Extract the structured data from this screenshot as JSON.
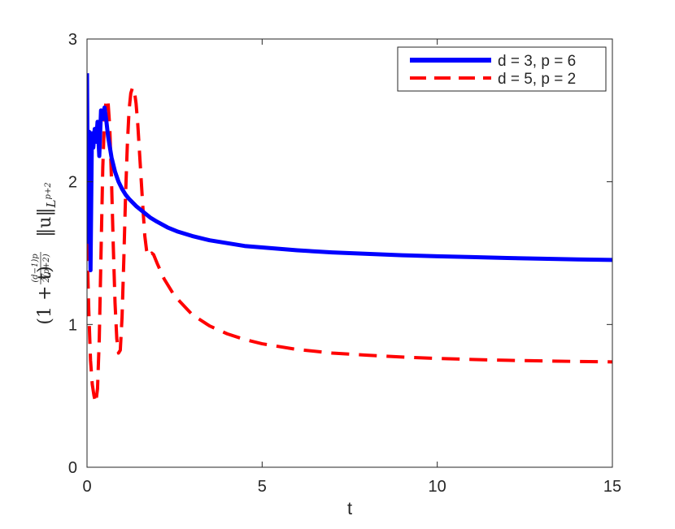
{
  "chart_data": {
    "type": "line",
    "title": "",
    "xlabel": "t",
    "ylabel": {
      "base": "(1 + t)",
      "exp_numerator": "(d−1)p",
      "exp_denominator": "2(p+2)",
      "norm": "‖u‖",
      "norm_subscript": "L",
      "norm_subscript_exp": "p+2"
    },
    "xlim": [
      0,
      15
    ],
    "ylim": [
      0,
      3
    ],
    "xticks": [
      0,
      5,
      10,
      15
    ],
    "yticks": [
      0,
      1,
      2,
      3
    ],
    "grid": false,
    "legend_position": "top-right",
    "series": [
      {
        "name": "d = 3, p = 6",
        "color": "#0000ff",
        "dash": "solid",
        "x": [
          0,
          0.03,
          0.06,
          0.1,
          0.14,
          0.18,
          0.22,
          0.26,
          0.3,
          0.35,
          0.4,
          0.45,
          0.5,
          0.55,
          0.6,
          0.7,
          0.8,
          0.9,
          1.0,
          1.1,
          1.2,
          1.4,
          1.6,
          1.8,
          2.0,
          2.3,
          2.6,
          3.0,
          3.5,
          4.0,
          4.5,
          5.0,
          6.0,
          7.0,
          8.0,
          9.0,
          10.0,
          11.0,
          12.0,
          13.0,
          14.0,
          15.0
        ],
        "y": [
          2.76,
          1.58,
          2.35,
          1.38,
          2.34,
          2.24,
          2.37,
          2.28,
          2.42,
          2.18,
          2.5,
          2.44,
          2.52,
          2.43,
          2.32,
          2.17,
          2.07,
          2.0,
          1.95,
          1.91,
          1.88,
          1.83,
          1.79,
          1.75,
          1.72,
          1.68,
          1.65,
          1.62,
          1.59,
          1.57,
          1.55,
          1.54,
          1.52,
          1.505,
          1.495,
          1.485,
          1.478,
          1.472,
          1.466,
          1.461,
          1.456,
          1.452
        ]
      },
      {
        "name": "d = 5, p = 2",
        "color": "#ff0000",
        "dash": "dashed",
        "x": [
          0,
          0.05,
          0.1,
          0.15,
          0.2,
          0.25,
          0.3,
          0.35,
          0.4,
          0.45,
          0.5,
          0.55,
          0.6,
          0.65,
          0.7,
          0.75,
          0.8,
          0.85,
          0.9,
          0.95,
          1.0,
          1.05,
          1.1,
          1.15,
          1.2,
          1.25,
          1.3,
          1.35,
          1.4,
          1.45,
          1.5,
          1.55,
          1.6,
          1.65,
          1.7,
          1.75,
          1.8,
          1.85,
          1.9,
          2.0,
          2.2,
          2.5,
          3.0,
          3.5,
          4.0,
          4.5,
          5.0,
          6.0,
          7.0,
          8.0,
          9.0,
          10.0,
          11.0,
          12.0,
          13.0,
          14.0,
          15.0
        ],
        "y": [
          1.57,
          1.1,
          0.75,
          0.58,
          0.5,
          0.45,
          0.55,
          0.9,
          1.5,
          2.1,
          2.45,
          2.58,
          2.56,
          2.38,
          2.0,
          1.55,
          1.15,
          0.9,
          0.8,
          0.82,
          1.05,
          1.45,
          1.9,
          2.25,
          2.5,
          2.62,
          2.66,
          2.64,
          2.55,
          2.4,
          2.2,
          2.0,
          1.8,
          1.62,
          1.52,
          1.48,
          1.48,
          1.5,
          1.49,
          1.43,
          1.32,
          1.2,
          1.07,
          0.99,
          0.935,
          0.895,
          0.865,
          0.825,
          0.8,
          0.785,
          0.772,
          0.762,
          0.755,
          0.749,
          0.745,
          0.741,
          0.738
        ]
      }
    ]
  }
}
